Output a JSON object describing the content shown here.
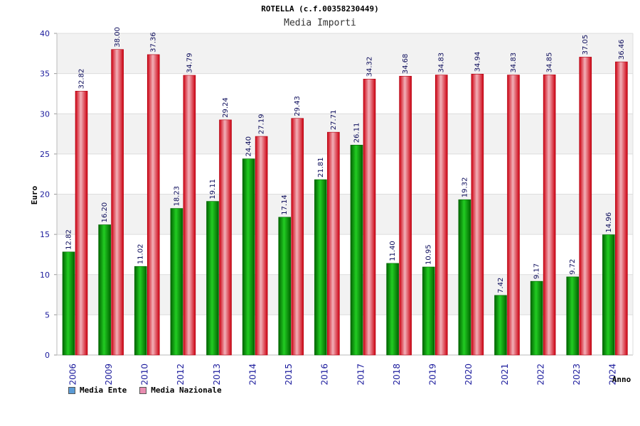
{
  "header": {
    "title": "ROTELLA (c.f.00358230449)",
    "subtitle": "Media Importi"
  },
  "legend": {
    "items": [
      {
        "label": "Media Ente",
        "color": "#5b9bd5"
      },
      {
        "label": "Media Nazionale",
        "color": "#e88cb0"
      }
    ]
  },
  "chart_data": {
    "type": "bar",
    "title": "Media Importi",
    "xlabel": "Anno",
    "ylabel": "Euro",
    "ylim": [
      0,
      40
    ],
    "yticks": [
      0,
      5,
      10,
      15,
      20,
      25,
      30,
      35,
      40
    ],
    "grid": true,
    "legend_position": "bottom-left",
    "categories": [
      "2006",
      "2009",
      "2010",
      "2012",
      "2013",
      "2014",
      "2015",
      "2016",
      "2017",
      "2018",
      "2019",
      "2020",
      "2021",
      "2022",
      "2023",
      "2024"
    ],
    "series": [
      {
        "name": "Media Ente",
        "color": "#00a000",
        "label_strings": [
          "12.82",
          "16.20",
          "11.02",
          "18.23",
          "19.11",
          "24.40",
          "17.14",
          "21.81",
          "26.11",
          "11.40",
          "10.95",
          "19.32",
          "7.42",
          "9.17",
          "9.72",
          "14.96"
        ],
        "values": [
          12.82,
          16.2,
          11.02,
          18.23,
          19.11,
          24.4,
          17.14,
          21.81,
          26.11,
          11.4,
          10.95,
          19.32,
          7.42,
          9.17,
          9.72,
          14.96
        ]
      },
      {
        "name": "Media Nazionale",
        "color": "#e8202a",
        "label_strings": [
          "32.82",
          "38.00",
          "37.36",
          "34.79",
          "29.24",
          "27.19",
          "29.43",
          "27.71",
          "34.32",
          "34.68",
          "34.83",
          "34.94",
          "34.83",
          "34.85",
          "37.05",
          "36.46"
        ],
        "values": [
          32.82,
          38.0,
          37.36,
          34.79,
          29.24,
          27.19,
          29.43,
          27.71,
          34.32,
          34.68,
          34.83,
          34.94,
          34.83,
          34.85,
          37.05,
          36.46
        ]
      }
    ]
  }
}
